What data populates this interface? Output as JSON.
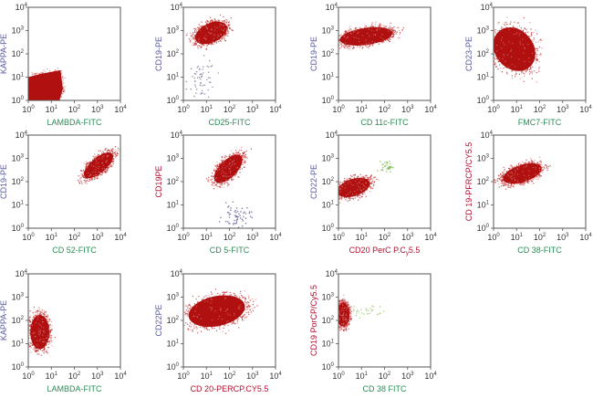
{
  "chart_data": [
    {
      "type": "scatter",
      "xlabel": "LAMBDA-FITC",
      "ylabel": "KAPPA-PE",
      "xlabel_color": "#2e8b57",
      "ylabel_color": "#5a5aa0",
      "xscale": "log",
      "yscale": "log",
      "xlim": [
        1,
        10000
      ],
      "ylim": [
        1,
        10000
      ],
      "xticks": [
        "10^0",
        "10^1",
        "10^2",
        "10^3",
        "10^4"
      ],
      "yticks": [
        "10^0",
        "10^1",
        "10^2",
        "10^3",
        "10^4"
      ],
      "populations": [
        {
          "color": "#b01010",
          "shape": "polygon",
          "points_log": [
            [
              0,
              0
            ],
            [
              0,
              1.0
            ],
            [
              0.6,
              1.15
            ],
            [
              1.4,
              1.3
            ],
            [
              1.5,
              0.5
            ],
            [
              1.35,
              0
            ]
          ],
          "density": "dense"
        }
      ]
    },
    {
      "type": "scatter",
      "xlabel": "CD25-FITC",
      "ylabel": "CD19-PE",
      "xlabel_color": "#2e8b57",
      "ylabel_color": "#5a5aa0",
      "xscale": "log",
      "yscale": "log",
      "xlim": [
        1,
        10000
      ],
      "ylim": [
        1,
        10000
      ],
      "xticks": [
        "10^0",
        "10^1",
        "10^2",
        "10^3",
        "10^4"
      ],
      "yticks": [
        "10^0",
        "10^1",
        "10^2",
        "10^3",
        "10^4"
      ],
      "populations": [
        {
          "color": "#b01010",
          "shape": "ellipse",
          "center_log": [
            1.2,
            2.9
          ],
          "radii_log": [
            0.8,
            0.45
          ],
          "rotation_deg": -25,
          "density": "dense"
        },
        {
          "color": "#8a8aa8",
          "shape": "scatter",
          "center_log": [
            0.8,
            0.9
          ],
          "spread_log": [
            0.5,
            0.7
          ],
          "count": 60,
          "density": "sparse"
        }
      ]
    },
    {
      "type": "scatter",
      "xlabel": "CD 11c-FITC",
      "ylabel": "CD19-PE",
      "xlabel_color": "#2e8b57",
      "ylabel_color": "#5a5aa0",
      "xscale": "log",
      "yscale": "log",
      "xlim": [
        1,
        10000
      ],
      "ylim": [
        1,
        10000
      ],
      "xticks": [
        "10^0",
        "10^1",
        "10^2",
        "10^3",
        "10^4"
      ],
      "yticks": [
        "10^0",
        "10^1",
        "10^2",
        "10^3",
        "10^4"
      ],
      "populations": [
        {
          "color": "#b01010",
          "shape": "ellipse",
          "center_log": [
            1.2,
            2.75
          ],
          "radii_log": [
            1.25,
            0.4
          ],
          "rotation_deg": -8,
          "density": "dense"
        }
      ]
    },
    {
      "type": "scatter",
      "xlabel": "FMC7-FITC",
      "ylabel": "CD23-PE",
      "xlabel_color": "#2e8b57",
      "ylabel_color": "#5a5aa0",
      "xscale": "log",
      "yscale": "log",
      "xlim": [
        1,
        10000
      ],
      "ylim": [
        1,
        10000
      ],
      "xticks": [
        "10^0",
        "10^1",
        "10^2",
        "10^3",
        "10^4"
      ],
      "yticks": [
        "10^0",
        "10^1",
        "10^2",
        "10^3",
        "10^4"
      ],
      "populations": [
        {
          "color": "#b01010",
          "shape": "ellipse",
          "center_log": [
            0.9,
            2.2
          ],
          "radii_log": [
            0.9,
            1.1
          ],
          "rotation_deg": -40,
          "density": "dense"
        }
      ]
    },
    {
      "type": "scatter",
      "xlabel": "CD 52-FITC",
      "ylabel": "CD19-PE",
      "xlabel_color": "#2e8b57",
      "ylabel_color": "#5a5aa0",
      "xscale": "log",
      "yscale": "log",
      "xlim": [
        1,
        10000
      ],
      "ylim": [
        1,
        10000
      ],
      "xticks": [
        "10^0",
        "10^1",
        "10^2",
        "10^3",
        "10^4"
      ],
      "yticks": [
        "10^0",
        "10^1",
        "10^2",
        "10^3",
        "10^4"
      ],
      "populations": [
        {
          "color": "#b01010",
          "shape": "ellipse",
          "center_log": [
            3.05,
            2.7
          ],
          "radii_log": [
            0.85,
            0.35
          ],
          "rotation_deg": -40,
          "density": "dense"
        }
      ]
    },
    {
      "type": "scatter",
      "xlabel": "CD 5-FITC",
      "ylabel": "CD19PE",
      "xlabel_color": "#2e8b57",
      "ylabel_color": "#b01030",
      "xscale": "log",
      "yscale": "log",
      "xlim": [
        1,
        10000
      ],
      "ylim": [
        1,
        10000
      ],
      "xticks": [
        "10^0",
        "10^1",
        "10^2",
        "10^3",
        "10^4"
      ],
      "yticks": [
        "10^0",
        "10^1",
        "10^2",
        "10^3",
        "10^4"
      ],
      "populations": [
        {
          "color": "#b01010",
          "shape": "ellipse",
          "center_log": [
            1.95,
            2.55
          ],
          "radii_log": [
            0.85,
            0.4
          ],
          "rotation_deg": -45,
          "density": "dense"
        },
        {
          "color": "#6a6aa8",
          "shape": "scatter",
          "center_log": [
            2.3,
            0.5
          ],
          "spread_log": [
            0.5,
            0.4
          ],
          "count": 60,
          "density": "sparse"
        }
      ]
    },
    {
      "type": "scatter",
      "xlabel": "CD20 PerC P.Cy5.5",
      "ylabel": "CD22-PE",
      "xlabel_color": "#b01030",
      "ylabel_color": "#5a5aa0",
      "xscale": "log",
      "yscale": "log",
      "xlim": [
        1,
        10000
      ],
      "ylim": [
        1,
        10000
      ],
      "xticks": [
        "10^0",
        "10^1",
        "10^2",
        "10^3",
        "10^4"
      ],
      "yticks": [
        "10^0",
        "10^1",
        "10^2",
        "10^3",
        "10^4"
      ],
      "populations": [
        {
          "color": "#b01010",
          "shape": "ellipse",
          "center_log": [
            0.65,
            1.75
          ],
          "radii_log": [
            0.8,
            0.4
          ],
          "rotation_deg": -18,
          "density": "dense"
        },
        {
          "color": "#8ac060",
          "shape": "scatter",
          "center_log": [
            2.1,
            2.65
          ],
          "spread_log": [
            0.2,
            0.2
          ],
          "count": 35,
          "density": "sparse"
        }
      ]
    },
    {
      "type": "scatter",
      "xlabel": "CD 38-FITC",
      "ylabel": "CD 19-PFRCP/CY5.5",
      "xlabel_color": "#2e8b57",
      "ylabel_color": "#b01030",
      "xscale": "log",
      "yscale": "log",
      "xlim": [
        1,
        10000
      ],
      "ylim": [
        1,
        10000
      ],
      "xticks": [
        "10^0",
        "10^1",
        "10^2",
        "10^3",
        "10^4"
      ],
      "yticks": [
        "10^0",
        "10^1",
        "10^2",
        "10^3",
        "10^4"
      ],
      "populations": [
        {
          "color": "#b01010",
          "shape": "ellipse",
          "center_log": [
            1.25,
            2.35
          ],
          "radii_log": [
            0.95,
            0.4
          ],
          "rotation_deg": -18,
          "density": "dense"
        }
      ]
    },
    {
      "type": "scatter",
      "xlabel": "LAMBDA-FITC",
      "ylabel": "KAPPA-PE",
      "xlabel_color": "#2e8b57",
      "ylabel_color": "#5a5aa0",
      "xscale": "log",
      "yscale": "log",
      "xlim": [
        1,
        10000
      ],
      "ylim": [
        1,
        10000
      ],
      "xticks": [
        "10^0",
        "10^1",
        "10^2",
        "10^3",
        "10^4"
      ],
      "yticks": [
        "10^0",
        "10^1",
        "10^2",
        "10^3",
        "10^4"
      ],
      "populations": [
        {
          "color": "#b01010",
          "shape": "ellipse",
          "center_log": [
            0.5,
            1.5
          ],
          "radii_log": [
            0.45,
            0.8
          ],
          "rotation_deg": 0,
          "density": "dense"
        }
      ]
    },
    {
      "type": "scatter",
      "xlabel": "CD 20-PERCP.CY5.5",
      "ylabel": "CD22PE",
      "xlabel_color": "#b01030",
      "ylabel_color": "#5a5aa0",
      "xscale": "log",
      "yscale": "log",
      "xlim": [
        1,
        10000
      ],
      "ylim": [
        1,
        10000
      ],
      "xticks": [
        "10^0",
        "10^1",
        "10^2",
        "10^3",
        "10^4"
      ],
      "yticks": [
        "10^0",
        "10^1",
        "10^2",
        "10^3",
        "10^4"
      ],
      "populations": [
        {
          "color": "#b01010",
          "shape": "ellipse",
          "center_log": [
            1.45,
            2.4
          ],
          "radii_log": [
            1.35,
            0.7
          ],
          "rotation_deg": -12,
          "density": "dense"
        }
      ]
    },
    {
      "type": "scatter",
      "xlabel": "CD 38 FITC",
      "ylabel": "CD19 PorCP/Cy5.5",
      "xlabel_color": "#2e8b57",
      "ylabel_color": "#b01030",
      "xscale": "log",
      "yscale": "log",
      "xlim": [
        1,
        10000
      ],
      "ylim": [
        1,
        10000
      ],
      "xticks": [
        "10^0",
        "10^1",
        "10^2",
        "10^3",
        "10^4"
      ],
      "yticks": [
        "10^0",
        "10^1",
        "10^2",
        "10^3",
        "10^4"
      ],
      "populations": [
        {
          "color": "#b01010",
          "shape": "ellipse",
          "center_log": [
            0.2,
            2.25
          ],
          "radii_log": [
            0.3,
            0.55
          ],
          "rotation_deg": 0,
          "density": "dense"
        },
        {
          "color": "#a8d080",
          "shape": "scatter",
          "center_log": [
            1.2,
            2.4
          ],
          "spread_log": [
            0.6,
            0.25
          ],
          "count": 30,
          "density": "sparse"
        }
      ]
    }
  ]
}
